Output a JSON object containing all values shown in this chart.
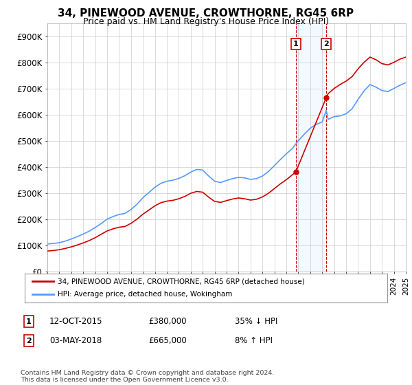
{
  "title": "34, PINEWOOD AVENUE, CROWTHORNE, RG45 6RP",
  "subtitle": "Price paid vs. HM Land Registry's House Price Index (HPI)",
  "title_fontsize": 11,
  "subtitle_fontsize": 9,
  "bg_color": "#ffffff",
  "grid_color": "#cccccc",
  "hpi_color": "#5599ff",
  "price_color": "#cc0000",
  "ylim": [
    0,
    950000
  ],
  "yticks": [
    0,
    100000,
    200000,
    300000,
    400000,
    500000,
    600000,
    700000,
    800000,
    900000
  ],
  "ytick_labels": [
    "£0",
    "£100K",
    "£200K",
    "£300K",
    "£400K",
    "£500K",
    "£600K",
    "£700K",
    "£800K",
    "£900K"
  ],
  "sale1_x": 2015.79,
  "sale1_y": 380000,
  "sale2_x": 2018.34,
  "sale2_y": 665000,
  "legend_price": "34, PINEWOOD AVENUE, CROWTHORNE, RG45 6RP (detached house)",
  "legend_hpi": "HPI: Average price, detached house, Wokingham",
  "footnote": "Contains HM Land Registry data © Crown copyright and database right 2024.\nThis data is licensed under the Open Government Licence v3.0.",
  "xmin": 1995,
  "xmax": 2025,
  "years_hpi": [
    1995.0,
    1995.5,
    1996.0,
    1996.5,
    1997.0,
    1997.5,
    1998.0,
    1998.5,
    1999.0,
    1999.5,
    2000.0,
    2000.5,
    2001.0,
    2001.5,
    2002.0,
    2002.5,
    2003.0,
    2003.5,
    2004.0,
    2004.5,
    2005.0,
    2005.5,
    2006.0,
    2006.5,
    2007.0,
    2007.5,
    2008.0,
    2008.5,
    2009.0,
    2009.5,
    2010.0,
    2010.5,
    2011.0,
    2011.5,
    2012.0,
    2012.5,
    2013.0,
    2013.5,
    2014.0,
    2014.5,
    2015.0,
    2015.5,
    2016.0,
    2016.5,
    2017.0,
    2017.5,
    2018.0,
    2018.34,
    2018.5,
    2019.0,
    2019.5,
    2020.0,
    2020.5,
    2021.0,
    2021.5,
    2022.0,
    2022.5,
    2023.0,
    2023.5,
    2024.0,
    2024.5,
    2025.0
  ],
  "hpi_values": [
    105000,
    107000,
    110000,
    116000,
    124000,
    133000,
    143000,
    154000,
    168000,
    183000,
    200000,
    210000,
    218000,
    222000,
    237000,
    257000,
    282000,
    302000,
    322000,
    337000,
    345000,
    349000,
    356000,
    366000,
    380000,
    390000,
    388000,
    365000,
    345000,
    340000,
    348000,
    355000,
    360000,
    358000,
    352000,
    355000,
    365000,
    382000,
    405000,
    428000,
    450000,
    470000,
    500000,
    525000,
    548000,
    562000,
    572000,
    616000,
    582000,
    592000,
    595000,
    603000,
    622000,
    658000,
    690000,
    715000,
    705000,
    692000,
    688000,
    700000,
    712000,
    722000
  ],
  "years_price": [
    1995.0,
    1995.5,
    1996.0,
    1996.5,
    1997.0,
    1997.5,
    1998.0,
    1998.5,
    1999.0,
    1999.5,
    2000.0,
    2000.5,
    2001.0,
    2001.5,
    2002.0,
    2002.5,
    2003.0,
    2003.5,
    2004.0,
    2004.5,
    2005.0,
    2005.5,
    2006.0,
    2006.5,
    2007.0,
    2007.5,
    2008.0,
    2008.5,
    2009.0,
    2009.5,
    2010.0,
    2010.5,
    2011.0,
    2011.5,
    2012.0,
    2012.5,
    2013.0,
    2013.5,
    2014.0,
    2014.5,
    2015.0,
    2015.79,
    2018.34,
    2018.5,
    2019.0,
    2019.5,
    2020.0,
    2020.5,
    2021.0,
    2021.5,
    2022.0,
    2022.5,
    2023.0,
    2023.5,
    2024.0,
    2024.5,
    2025.0
  ],
  "price_values": [
    78000,
    80000,
    83000,
    88000,
    94000,
    101000,
    109000,
    118000,
    129000,
    142000,
    155000,
    163000,
    169000,
    172000,
    184000,
    200000,
    219000,
    235000,
    251000,
    263000,
    269000,
    272000,
    278000,
    287000,
    299000,
    306000,
    303000,
    284000,
    268000,
    264000,
    271000,
    277000,
    281000,
    278000,
    273000,
    276000,
    285000,
    299000,
    317000,
    335000,
    351000,
    380000,
    665000,
    680000,
    700000,
    715000,
    728000,
    745000,
    775000,
    800000,
    820000,
    810000,
    795000,
    790000,
    800000,
    812000,
    820000
  ]
}
